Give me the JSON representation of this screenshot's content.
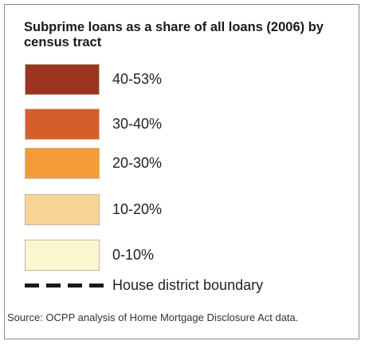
{
  "legend": {
    "title": "Subprime loans as a share of all loans (2006) by census tract",
    "items": [
      {
        "label": "40-53%",
        "color": "#9b3520"
      },
      {
        "label": "30-40%",
        "color": "#d45f2b"
      },
      {
        "label": "20-30%",
        "color": "#f39c37"
      },
      {
        "label": "10-20%",
        "color": "#f7d596"
      },
      {
        "label": "0-10%",
        "color": "#fbf6d0"
      }
    ],
    "boundary_label": "House district boundary",
    "source": "Source: OCPP analysis of Home Mortgage Disclosure Act data."
  }
}
